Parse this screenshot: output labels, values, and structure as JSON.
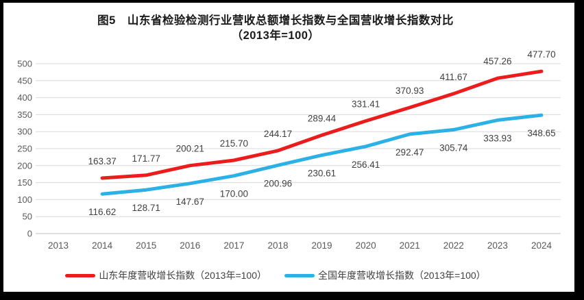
{
  "chart_data": {
    "type": "line",
    "title": "图5　山东省检验检测行业营收总额增长指数与全国营收增长指数对比",
    "subtitle": "（2013年=100）",
    "x": [
      2013,
      2014,
      2015,
      2016,
      2017,
      2018,
      2019,
      2020,
      2021,
      2022,
      2023,
      2024
    ],
    "ylim": [
      0,
      500
    ],
    "yticks": [
      0,
      50,
      100,
      150,
      200,
      250,
      300,
      350,
      400,
      450,
      500
    ],
    "grid": true,
    "legend_position": "bottom",
    "label_decimals": 2,
    "series": [
      {
        "id": "shandong",
        "name": "山东年度营收增长指数（2013年=100）",
        "color": "#ec1c1c",
        "values": [
          null,
          163.37,
          171.77,
          200.21,
          215.7,
          244.17,
          289.44,
          331.41,
          370.93,
          411.67,
          457.26,
          477.7
        ]
      },
      {
        "id": "national",
        "name": "全国年度营收增长指数（2013年=100）",
        "color": "#2bb1e5",
        "values": [
          null,
          116.62,
          128.71,
          147.67,
          170.0,
          200.96,
          230.61,
          256.41,
          292.47,
          305.74,
          333.93,
          348.65
        ]
      }
    ],
    "colors": {
      "gridline": "#d9d9d9",
      "axis_line": "#bfbfbf",
      "tick_label": "#595959",
      "data_label": "#404040"
    }
  }
}
